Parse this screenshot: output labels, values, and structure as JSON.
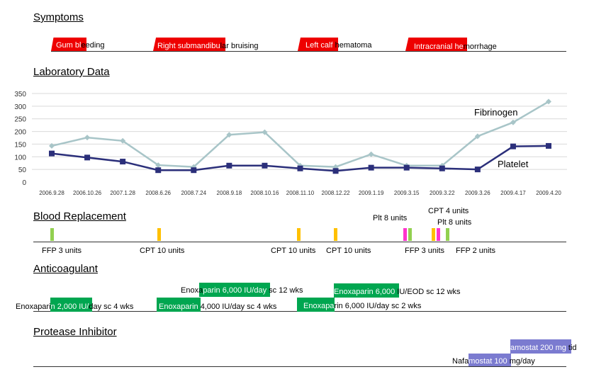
{
  "sections": {
    "symptoms": "Symptoms",
    "lab": "Laboratory Data",
    "blood": "Blood Replacement",
    "anticoag": "Anticoagulant",
    "protease": "Protease Inhibitor"
  },
  "colors": {
    "symptom": "#ee0000",
    "fibrinogen": "#a8c5c8",
    "platelet": "#2b2f7a",
    "ffp": "#92d050",
    "cpt": "#ffc000",
    "plt": "#ff33cc",
    "enox": "#00a650",
    "nafa": "#7b7bd0"
  },
  "symptoms": [
    {
      "a": "Gum bl",
      "b": "eeding"
    },
    {
      "a": "Right submandibu",
      "b": "lar bruising"
    },
    {
      "a": "Left calf ",
      "b": "hematoma"
    },
    {
      "a": "Intracranial he",
      "b": "morrhage"
    }
  ],
  "chart_data": {
    "type": "line",
    "categories": [
      "2006.9.28",
      "2006.10.26",
      "2007.1.28",
      "2008.6.26",
      "2008.7.24",
      "2008.9.18",
      "2008.10.16",
      "2008.11.10",
      "2008.12.22",
      "2009.1.19",
      "2009.3.15",
      "2009.3.22",
      "2009.3.26",
      "2009.4.17",
      "2009.4.20"
    ],
    "series": [
      {
        "name": "Fibrinogen",
        "values": [
          143,
          176,
          163,
          67,
          60,
          187,
          197,
          65,
          60,
          110,
          65,
          65,
          181,
          236,
          318
        ]
      },
      {
        "name": "Platelet",
        "values": [
          113,
          97,
          81,
          47,
          47,
          65,
          65,
          54,
          44,
          57,
          57,
          54,
          50,
          141,
          143
        ]
      }
    ],
    "ylim": [
      0,
      350
    ],
    "yticks": [
      0,
      50,
      100,
      150,
      200,
      250,
      300,
      350
    ],
    "grid": true
  },
  "blood": {
    "top_labels": {
      "plt8": "Plt 8 units",
      "cpt4": "CPT 4 units",
      "plt8b": "Plt 8 units"
    },
    "bottom_labels": {
      "ffp3a": "FFP 3 units",
      "cpt10a": "CPT 10 units",
      "cpt10b": "CPT 10 units",
      "cpt10c": "CPT 10 units",
      "ffp3b": "FFP 3 units",
      "ffp2": "FFP 2 units"
    }
  },
  "anticoag": [
    {
      "a": "Enoxa",
      "b": "parin 6,000 IU/day",
      "c": " sc 12 wks"
    },
    {
      "b": "Enoxaparin 6,000 ",
      "c": "IU/EOD sc 12 wks"
    },
    {
      "a": "Enoxapari",
      "b": "n 2,000 IU/",
      "c": "day sc 4 wks"
    },
    {
      "b": "Enoxaparin ",
      "c": "4,000 IU/day sc 4 wks"
    },
    {
      "b": "Enoxapa",
      "c": "rin 6,000 IU/day sc 2 wks"
    }
  ],
  "protease": [
    {
      "b": "amostat 200 mg",
      "c": " tid"
    },
    {
      "a": "Nafa",
      "b": "mostat 100",
      "c": " mg/day"
    }
  ]
}
